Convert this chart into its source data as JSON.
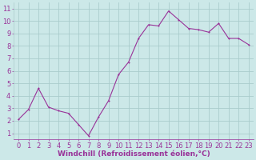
{
  "x": [
    0,
    1,
    2,
    3,
    4,
    5,
    6,
    7,
    8,
    9,
    10,
    11,
    12,
    13,
    14,
    15,
    16,
    17,
    18,
    19,
    20,
    21,
    22,
    23
  ],
  "y": [
    2.1,
    2.9,
    4.6,
    3.1,
    2.8,
    2.6,
    1.7,
    0.8,
    2.3,
    3.6,
    5.7,
    6.7,
    8.6,
    9.7,
    9.6,
    10.8,
    10.1,
    9.4,
    9.3,
    9.1,
    9.8,
    8.6,
    8.6,
    8.1
  ],
  "line_color": "#993399",
  "marker": "P",
  "marker_size": 2.0,
  "bg_color": "#cce8e8",
  "grid_color": "#aacccc",
  "xlabel": "Windchill (Refroidissement éolien,°C)",
  "xlabel_color": "#993399",
  "tick_color": "#993399",
  "ylim": [
    0.5,
    11.5
  ],
  "xlim": [
    -0.5,
    23.5
  ],
  "yticks": [
    1,
    2,
    3,
    4,
    5,
    6,
    7,
    8,
    9,
    10,
    11
  ],
  "xticks": [
    0,
    1,
    2,
    3,
    4,
    5,
    6,
    7,
    8,
    9,
    10,
    11,
    12,
    13,
    14,
    15,
    16,
    17,
    18,
    19,
    20,
    21,
    22,
    23
  ],
  "line_width": 0.8,
  "tick_fontsize": 6.0,
  "xlabel_fontsize": 6.5
}
